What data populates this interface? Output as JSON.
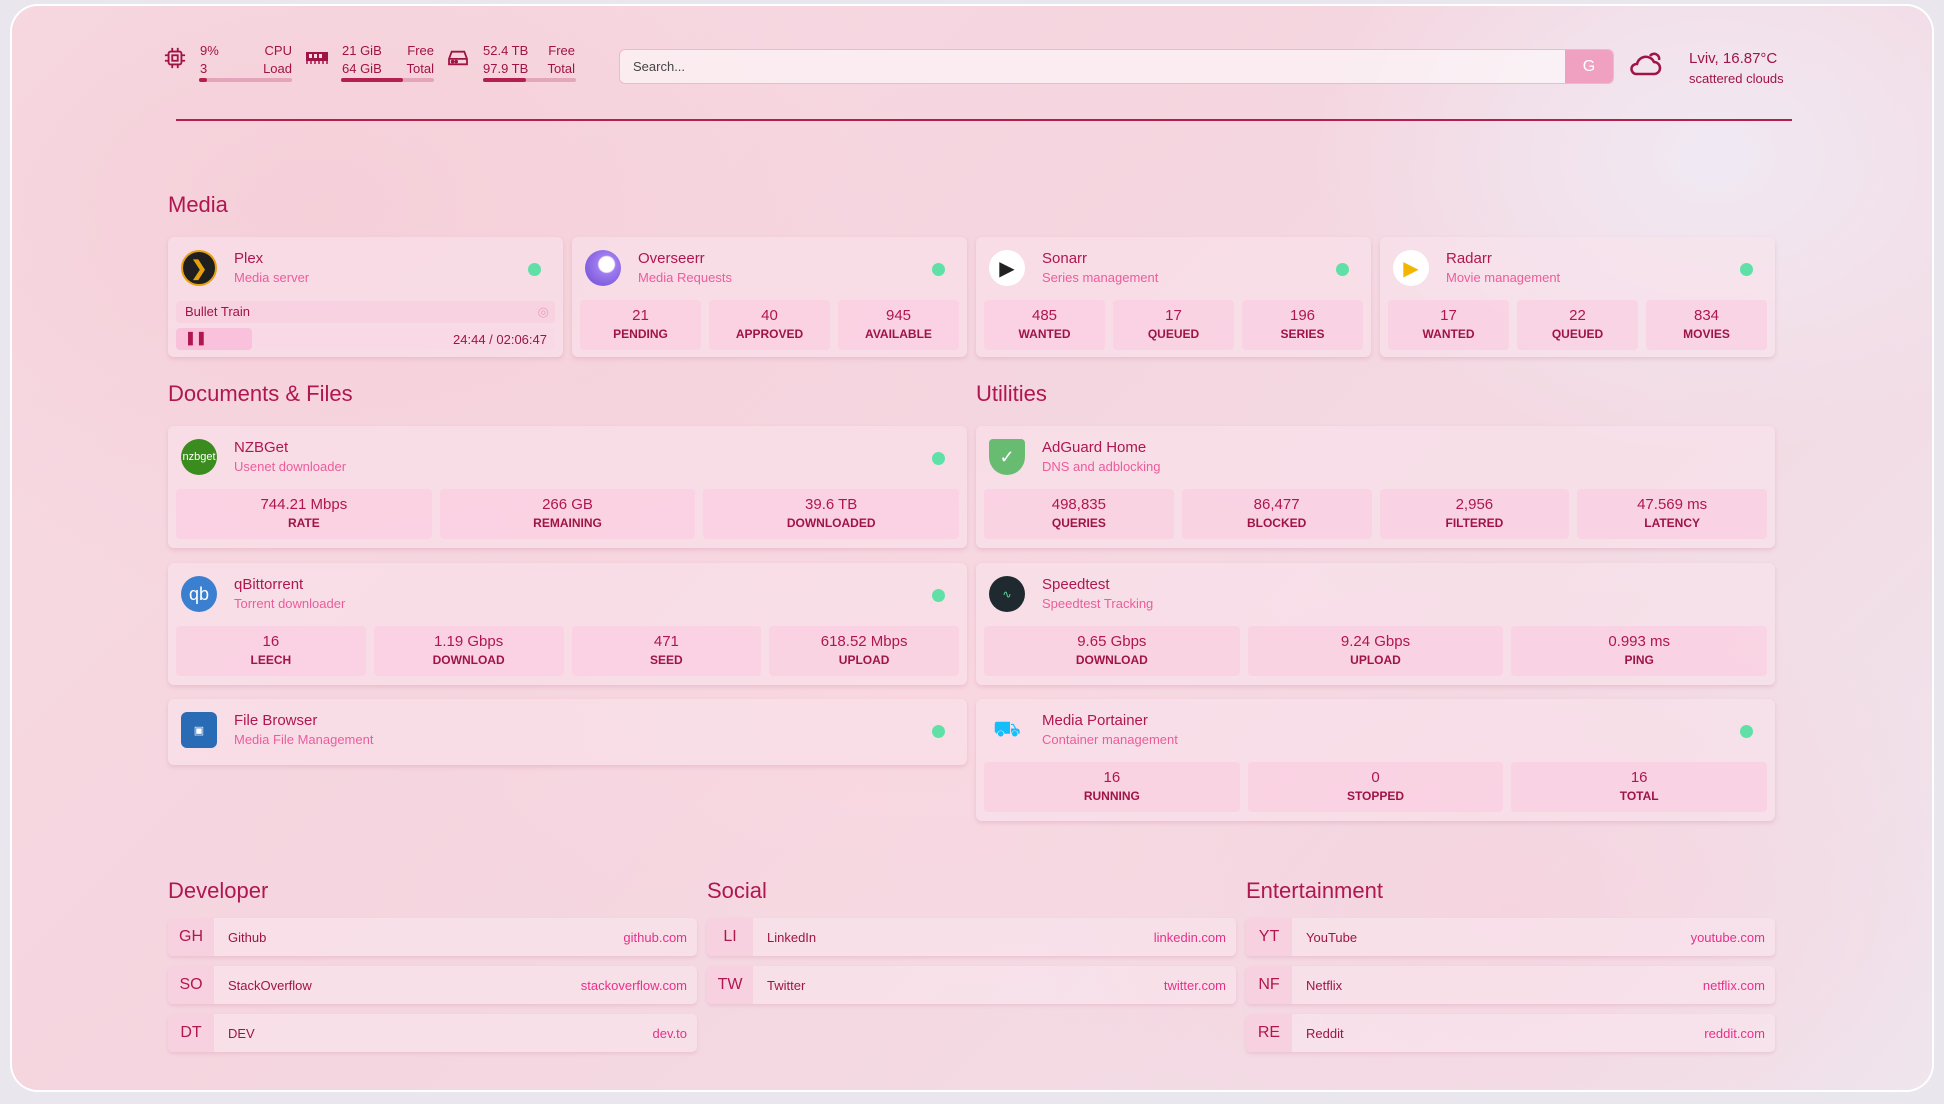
{
  "system": {
    "cpu": {
      "icon": "cpu-icon",
      "value": "9%",
      "value2": "3",
      "label": "CPU",
      "label2": "Load",
      "usage_percent": 9
    },
    "memory": {
      "icon": "memory-icon",
      "value": "21 GiB",
      "value2": "64 GiB",
      "label": "Free",
      "label2": "Total",
      "usage_percent": 67
    },
    "disk": {
      "icon": "hard-drive-icon",
      "value": "52.4 TB",
      "value2": "97.9 TB",
      "label": "Free",
      "label2": "Total",
      "usage_percent": 46
    }
  },
  "search": {
    "placeholder": "Search...",
    "button": "G"
  },
  "weather": {
    "icon": "cloud-icon",
    "location": "Lviv, 16.87°C",
    "description": "scattered clouds"
  },
  "sections": {
    "media": "Media",
    "documents": "Documents & Files",
    "utilities": "Utilities",
    "developer": "Developer",
    "social": "Social",
    "entertainment": "Entertainment"
  },
  "accent_color": "#b0164f",
  "status_color": "#5fe0a6",
  "plex": {
    "name": "Plex",
    "description": "Media server",
    "now_playing": "Bullet Train",
    "progress_time": "24:44 / 02:06:47",
    "progress_percent": 20,
    "status": "online"
  },
  "cards": [
    {
      "id": "overseerr",
      "name": "Overseerr",
      "description": "Media Requests",
      "icon": "overseerr-icon",
      "stats": [
        {
          "value": "21",
          "label": "PENDING"
        },
        {
          "value": "40",
          "label": "APPROVED"
        },
        {
          "value": "945",
          "label": "AVAILABLE"
        }
      ]
    },
    {
      "id": "sonarr",
      "name": "Sonarr",
      "description": "Series management",
      "icon": "sonarr-icon",
      "stats": [
        {
          "value": "485",
          "label": "WANTED"
        },
        {
          "value": "17",
          "label": "QUEUED"
        },
        {
          "value": "196",
          "label": "SERIES"
        }
      ]
    },
    {
      "id": "radarr",
      "name": "Radarr",
      "description": "Movie management",
      "icon": "radarr-icon",
      "stats": [
        {
          "value": "17",
          "label": "WANTED"
        },
        {
          "value": "22",
          "label": "QUEUED"
        },
        {
          "value": "834",
          "label": "MOVIES"
        }
      ]
    },
    {
      "id": "nzbget",
      "name": "NZBGet",
      "description": "Usenet downloader",
      "icon": "nzbget-icon",
      "icon_text": "nzbget",
      "stats": [
        {
          "value": "744.21 Mbps",
          "label": "RATE"
        },
        {
          "value": "266 GB",
          "label": "REMAINING"
        },
        {
          "value": "39.6 TB",
          "label": "DOWNLOADED"
        }
      ]
    },
    {
      "id": "qbittorrent",
      "name": "qBittorrent",
      "description": "Torrent downloader",
      "icon": "qbittorrent-icon",
      "icon_text": "qb",
      "stats": [
        {
          "value": "16",
          "label": "LEECH"
        },
        {
          "value": "1.19 Gbps",
          "label": "DOWNLOAD"
        },
        {
          "value": "471",
          "label": "SEED"
        },
        {
          "value": "618.52 Mbps",
          "label": "UPLOAD"
        }
      ]
    },
    {
      "id": "filebrowser",
      "name": "File Browser",
      "description": "Media File Management",
      "icon": "file-browser-icon",
      "stats": []
    },
    {
      "id": "adguard",
      "name": "AdGuard Home",
      "description": "DNS and adblocking",
      "icon": "adguard-shield-icon",
      "stats": [
        {
          "value": "498,835",
          "label": "QUERIES"
        },
        {
          "value": "86,477",
          "label": "BLOCKED"
        },
        {
          "value": "2,956",
          "label": "FILTERED"
        },
        {
          "value": "47.569 ms",
          "label": "LATENCY"
        }
      ]
    },
    {
      "id": "speedtest",
      "name": "Speedtest",
      "description": "Speedtest Tracking",
      "icon": "speedtest-icon",
      "stats": [
        {
          "value": "9.65 Gbps",
          "label": "DOWNLOAD"
        },
        {
          "value": "9.24 Gbps",
          "label": "UPLOAD"
        },
        {
          "value": "0.993 ms",
          "label": "PING"
        }
      ]
    },
    {
      "id": "portainer",
      "name": "Media Portainer",
      "description": "Container management",
      "icon": "portainer-icon",
      "stats": [
        {
          "value": "16",
          "label": "RUNNING"
        },
        {
          "value": "0",
          "label": "STOPPED"
        },
        {
          "value": "16",
          "label": "TOTAL"
        }
      ]
    }
  ],
  "bookmarks": {
    "developer": [
      {
        "abbr": "GH",
        "name": "Github",
        "url": "github.com"
      },
      {
        "abbr": "SO",
        "name": "StackOverflow",
        "url": "stackoverflow.com"
      },
      {
        "abbr": "DT",
        "name": "DEV",
        "url": "dev.to"
      }
    ],
    "social": [
      {
        "abbr": "LI",
        "name": "LinkedIn",
        "url": "linkedin.com"
      },
      {
        "abbr": "TW",
        "name": "Twitter",
        "url": "twitter.com"
      }
    ],
    "entertainment": [
      {
        "abbr": "YT",
        "name": "YouTube",
        "url": "youtube.com"
      },
      {
        "abbr": "NF",
        "name": "Netflix",
        "url": "netflix.com"
      },
      {
        "abbr": "RE",
        "name": "Reddit",
        "url": "reddit.com"
      }
    ]
  }
}
